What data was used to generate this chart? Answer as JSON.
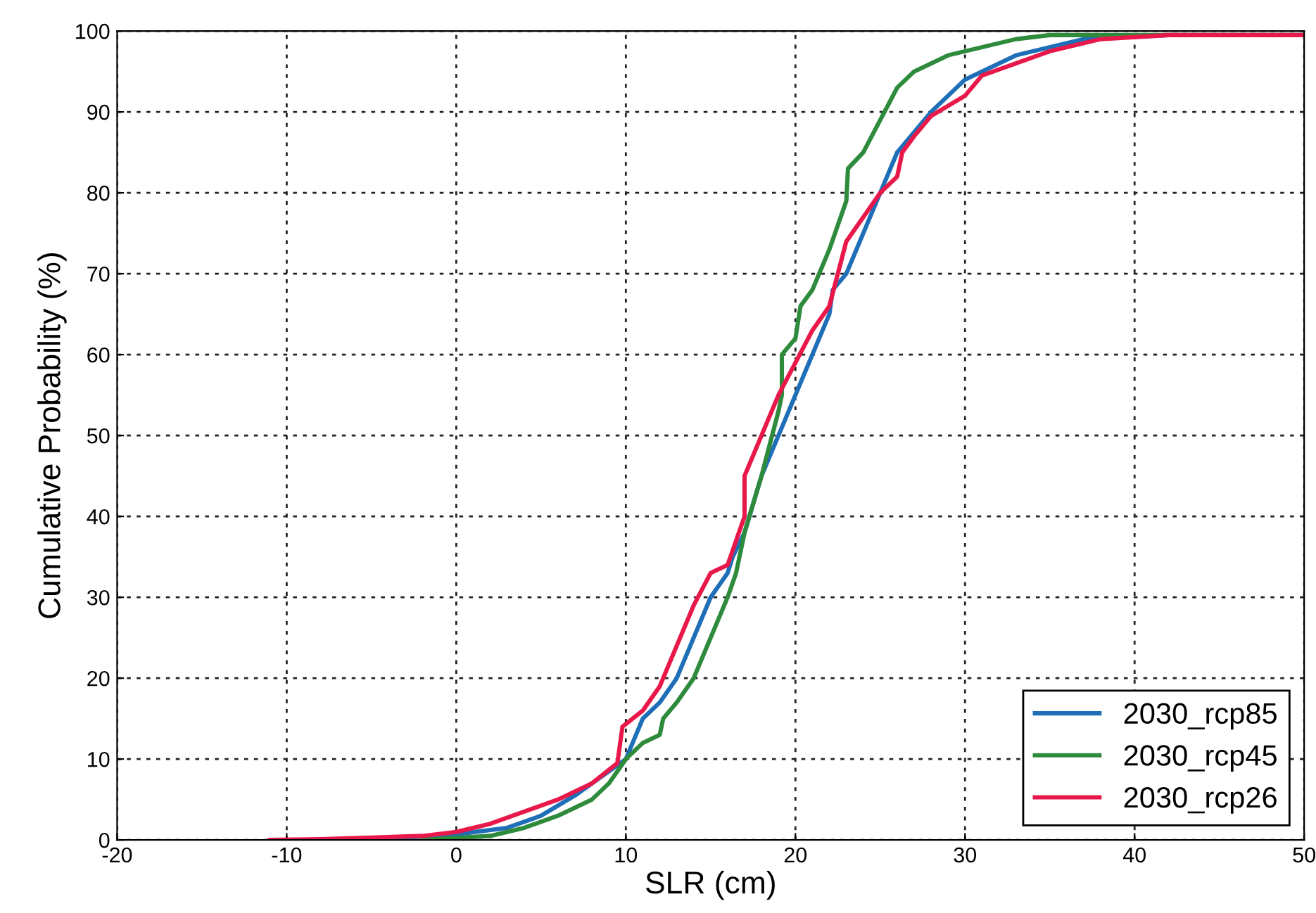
{
  "chart_data": {
    "type": "line",
    "xlabel": "SLR (cm)",
    "ylabel": "Cumulative Probability (%)",
    "xlim": [
      -20,
      50
    ],
    "xticks": [
      -20,
      -10,
      0,
      10,
      20,
      30,
      40,
      50
    ],
    "ylim": [
      0,
      100
    ],
    "yticks": [
      0,
      10,
      20,
      30,
      40,
      50,
      60,
      70,
      80,
      90,
      100
    ],
    "grid": true,
    "legend": "bottom right",
    "marker": "none",
    "line_style": "solid",
    "series": [
      {
        "name": "2030_rcp85",
        "color": "#1f6fb8",
        "x": [
          -5,
          0,
          3,
          5,
          7,
          9,
          10,
          11,
          12,
          13,
          14,
          15,
          16,
          16.3,
          17,
          18,
          19,
          20,
          21,
          22,
          22.2,
          23,
          24,
          25,
          26,
          28,
          30,
          33,
          37,
          42,
          50
        ],
        "values": [
          0,
          0.7,
          1.5,
          3,
          5.5,
          8.5,
          10,
          15,
          17,
          20,
          25,
          30,
          33,
          35,
          38,
          45,
          50,
          55,
          60,
          65,
          68,
          70,
          75,
          80,
          85,
          90,
          94,
          97,
          99,
          99.5,
          99.5
        ]
      },
      {
        "name": "2030_rcp45",
        "color": "#2e8b3c",
        "x": [
          -2,
          2,
          4,
          6,
          8,
          9,
          10,
          11,
          12,
          12.2,
          13,
          14,
          15,
          16,
          16.5,
          17,
          18,
          19,
          19.2,
          19.2,
          20,
          20.3,
          21,
          22,
          23,
          23.1,
          24,
          25,
          26,
          27,
          29,
          31,
          33,
          35,
          50
        ],
        "values": [
          0,
          0.5,
          1.5,
          3,
          5,
          7,
          10,
          12,
          13,
          15,
          17,
          20,
          25,
          30,
          33,
          38,
          45,
          53,
          55,
          60,
          62,
          66,
          68,
          73,
          79,
          83,
          85,
          89,
          93,
          95,
          97,
          98,
          99,
          99.5,
          99.5
        ]
      },
      {
        "name": "2030_rcp26",
        "color": "#e8194a",
        "x": [
          -11,
          -8,
          -5,
          -2,
          0,
          2,
          4,
          6,
          8,
          9.5,
          9.8,
          11,
          12,
          13,
          14,
          15,
          16,
          16.5,
          17,
          17,
          18,
          19,
          20,
          21,
          22,
          22.5,
          23,
          24,
          25,
          26,
          26.3,
          27,
          28,
          30,
          31,
          33,
          35,
          38,
          42,
          50
        ],
        "values": [
          0,
          0.1,
          0.3,
          0.5,
          1,
          2,
          3.5,
          5,
          7,
          9.5,
          14,
          16,
          19,
          24,
          29,
          33,
          34,
          37,
          40,
          45,
          50,
          55,
          59,
          63,
          66,
          70,
          74,
          77,
          80,
          82,
          85,
          87,
          89.5,
          92,
          94.5,
          96,
          97.5,
          99,
          99.5,
          99.5
        ]
      }
    ]
  }
}
